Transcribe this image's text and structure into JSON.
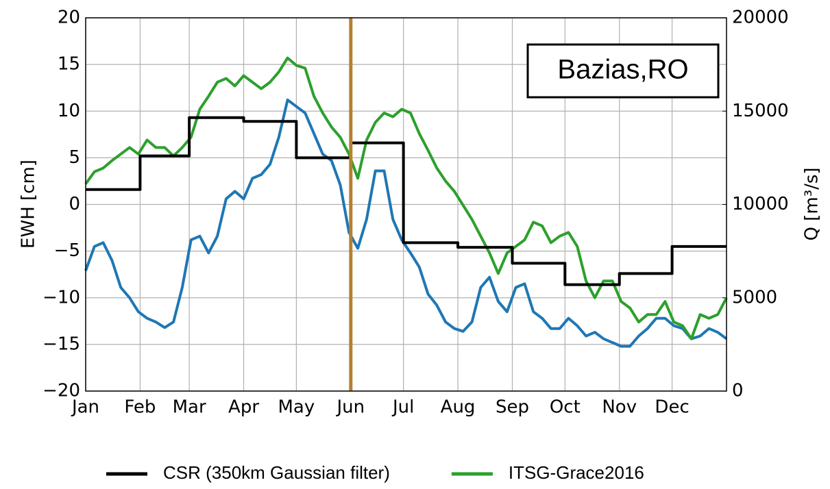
{
  "chart_data": {
    "type": "line",
    "ylabel": "EWH [cm]",
    "y2label": "Q [m³/s]",
    "annotation": "Bazias,RO",
    "xlim": [
      0,
      365
    ],
    "xticks": [
      {
        "value": 0,
        "label": "Jan"
      },
      {
        "value": 31,
        "label": "Feb"
      },
      {
        "value": 59,
        "label": "Mar"
      },
      {
        "value": 90,
        "label": "Apr"
      },
      {
        "value": 120,
        "label": "May"
      },
      {
        "value": 151,
        "label": "Jun"
      },
      {
        "value": 181,
        "label": "Jul"
      },
      {
        "value": 212,
        "label": "Aug"
      },
      {
        "value": 243,
        "label": "Sep"
      },
      {
        "value": 273,
        "label": "Oct"
      },
      {
        "value": 304,
        "label": "Nov"
      },
      {
        "value": 334,
        "label": "Dec"
      }
    ],
    "ylim": [
      -20,
      20
    ],
    "yticks": [
      {
        "value": -20,
        "label": "−20"
      },
      {
        "value": -15,
        "label": "−15"
      },
      {
        "value": -10,
        "label": "−10"
      },
      {
        "value": -5,
        "label": "−5"
      },
      0,
      5,
      10,
      15,
      20
    ],
    "y2lim": [
      0,
      20000
    ],
    "y2ticks": [
      0,
      5000,
      10000,
      15000,
      20000
    ],
    "grid": true,
    "vline": {
      "x": 151,
      "color": "#b5812f"
    },
    "x": [
      0,
      5,
      10,
      15,
      20,
      25,
      30,
      35,
      40,
      45,
      50,
      55,
      60,
      65,
      70,
      75,
      80,
      85,
      90,
      95,
      100,
      105,
      110,
      115,
      120,
      125,
      130,
      135,
      140,
      145,
      150,
      155,
      160,
      165,
      170,
      175,
      180,
      185,
      190,
      195,
      200,
      205,
      210,
      215,
      220,
      225,
      230,
      235,
      240,
      245,
      250,
      255,
      260,
      265,
      270,
      275,
      280,
      285,
      290,
      295,
      300,
      305,
      310,
      315,
      320,
      325,
      330,
      335,
      340,
      345,
      350,
      355,
      360,
      365
    ],
    "series": [
      {
        "name": "CSR (350km Gaussian filter)",
        "color": "#000000",
        "x": [
          0,
          31,
          31,
          59,
          59,
          90,
          90,
          120,
          120,
          151,
          151,
          181,
          181,
          212,
          212,
          243,
          243,
          273,
          273,
          304,
          304,
          334,
          334,
          365
        ],
        "values": [
          1.6,
          1.6,
          5.2,
          5.2,
          9.3,
          9.3,
          8.9,
          8.9,
          5.0,
          5.0,
          6.6,
          6.6,
          -4.1,
          -4.1,
          -4.6,
          -4.6,
          -6.3,
          -6.3,
          -8.6,
          -8.6,
          -7.4,
          -7.4,
          -4.5,
          -4.5
        ]
      },
      {
        "name": "ITSG-Grace2016",
        "color": "#2ca02c",
        "values": [
          2.2,
          3.5,
          3.9,
          4.7,
          5.4,
          6.1,
          5.4,
          6.9,
          6.1,
          6.1,
          5.2,
          6.1,
          7.2,
          10.2,
          11.6,
          13.1,
          13.5,
          12.7,
          13.8,
          13.1,
          12.4,
          13.1,
          14.2,
          15.7,
          14.9,
          14.6,
          11.6,
          9.8,
          8.3,
          7.2,
          5.4,
          2.8,
          6.9,
          8.8,
          9.8,
          9.4,
          10.2,
          9.8,
          7.6,
          5.8,
          3.9,
          2.5,
          1.4,
          -0.1,
          -1.6,
          -3.4,
          -5.2,
          -7.4,
          -5.2,
          -4.5,
          -3.8,
          -1.9,
          -2.3,
          -4.1,
          -3.4,
          -3.0,
          -4.5,
          -8.2,
          -10.0,
          -8.2,
          -8.2,
          -10.4,
          -11.1,
          -12.6,
          -11.8,
          -11.8,
          -10.4,
          -12.6,
          -13.0,
          -14.4,
          -11.8,
          -12.2,
          -11.8,
          -10.0
        ]
      },
      {
        "color": "#1f77b4",
        "axis": "y2",
        "values": [
          6450,
          7750,
          7950,
          7000,
          5550,
          5000,
          4250,
          3900,
          3700,
          3400,
          3700,
          5550,
          8100,
          8300,
          7400,
          8300,
          10300,
          10700,
          10300,
          11400,
          11600,
          12150,
          13600,
          15600,
          15250,
          14900,
          13800,
          12700,
          12350,
          11050,
          8500,
          7650,
          9200,
          11800,
          11800,
          9200,
          8100,
          7400,
          6650,
          5200,
          4600,
          3700,
          3350,
          3200,
          3700,
          5550,
          6100,
          4800,
          4250,
          5550,
          5750,
          4250,
          3900,
          3350,
          3350,
          3900,
          3500,
          2950,
          3150,
          2800,
          2600,
          2400,
          2400,
          2950,
          3350,
          3900,
          3900,
          3500,
          3350,
          2800,
          2950,
          3350,
          3150,
          2800
        ]
      }
    ]
  }
}
